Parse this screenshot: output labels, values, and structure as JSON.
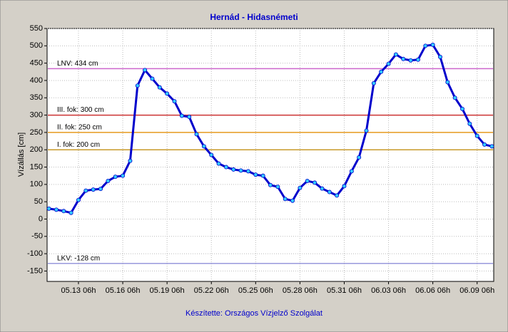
{
  "chart_data": {
    "type": "line",
    "title": "Hernád - Hidasnémeti",
    "ylabel": "Vízállás [cm]",
    "footer": "Készítette: Országos Vízjelző Szolgálat",
    "x": [
      "05.11 06h",
      "05.11 18h",
      "05.12 06h",
      "05.12 18h",
      "05.13 06h",
      "05.13 18h",
      "05.14 06h",
      "05.14 18h",
      "05.15 06h",
      "05.15 18h",
      "05.16 06h",
      "05.16 18h",
      "05.17 06h",
      "05.17 18h",
      "05.18 06h",
      "05.18 18h",
      "05.19 06h",
      "05.19 18h",
      "05.20 06h",
      "05.20 18h",
      "05.21 06h",
      "05.21 18h",
      "05.22 06h",
      "05.22 18h",
      "05.23 06h",
      "05.23 18h",
      "05.24 06h",
      "05.24 18h",
      "05.25 06h",
      "05.25 18h",
      "05.26 06h",
      "05.26 18h",
      "05.27 06h",
      "05.27 18h",
      "05.28 06h",
      "05.28 18h",
      "05.29 06h",
      "05.29 18h",
      "05.30 06h",
      "05.30 18h",
      "05.31 06h",
      "05.31 18h",
      "06.01 06h",
      "06.01 18h",
      "06.02 06h",
      "06.02 18h",
      "06.03 06h",
      "06.03 18h",
      "06.04 06h",
      "06.04 18h",
      "06.05 06h",
      "06.05 18h",
      "06.06 06h",
      "06.06 18h",
      "06.07 06h",
      "06.07 18h",
      "06.08 06h",
      "06.08 18h",
      "06.09 06h",
      "06.09 18h",
      "06.10 06h"
    ],
    "series": [
      {
        "color": "#0000cc",
        "marker_color": "#33ccff",
        "values": [
          30,
          27,
          23,
          18,
          55,
          82,
          85,
          87,
          110,
          122,
          125,
          168,
          385,
          430,
          405,
          380,
          362,
          340,
          298,
          295,
          245,
          210,
          185,
          160,
          150,
          143,
          140,
          138,
          128,
          125,
          98,
          93,
          58,
          53,
          90,
          110,
          105,
          88,
          78,
          68,
          95,
          138,
          178,
          255,
          392,
          425,
          448,
          475,
          462,
          458,
          460,
          500,
          503,
          468,
          395,
          350,
          318,
          275,
          240,
          215,
          210
        ]
      }
    ],
    "reference_lines": [
      {
        "label": "LNV: 434 cm",
        "value": 434,
        "color": "#cc66cc"
      },
      {
        "label": "III. fok: 300 cm",
        "value": 300,
        "color": "#cc3333"
      },
      {
        "label": "II. fok: 250 cm",
        "value": 250,
        "color": "#e69a1e"
      },
      {
        "label": "I. fok: 200 cm",
        "value": 200,
        "color": "#c89a2a"
      },
      {
        "label": "LKV: -128 cm",
        "value": -128,
        "color": "#9999dd"
      }
    ],
    "xlim": [
      "05.11 03h",
      "06.10 09h"
    ],
    "xticks": [
      "05.13 06h",
      "05.16 06h",
      "05.19 06h",
      "05.22 06h",
      "05.25 06h",
      "05.28 06h",
      "05.31 06h",
      "06.03 06h",
      "06.06 06h",
      "06.09 06h"
    ],
    "ylim": [
      -180,
      550
    ],
    "yticks": [
      -150,
      -100,
      -50,
      0,
      50,
      100,
      150,
      200,
      250,
      300,
      350,
      400,
      450,
      500,
      550
    ],
    "grid": true
  }
}
